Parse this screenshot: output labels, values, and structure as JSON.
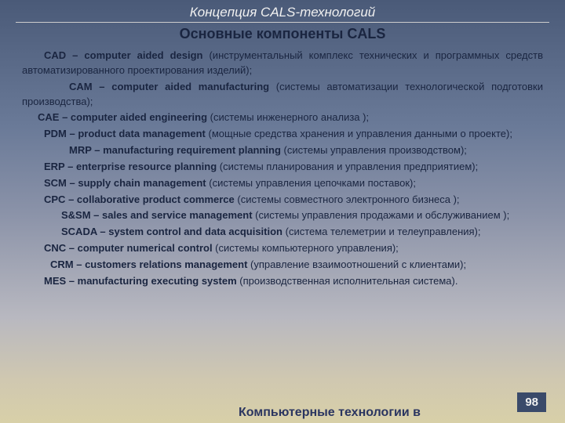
{
  "header": "Концепция CALS-технологий",
  "title": "Основные компоненты CALS",
  "entries": [
    {
      "indent": 28,
      "abbr": "СAD",
      "sep": " – ",
      "full": "computer aided design",
      "desc": " (инструментальный комплекс технических и программных средств автоматизированного проектирования изделий);"
    },
    {
      "indent": 60,
      "abbr": "CAM",
      "sep": "  –  ",
      "full": "computer aided manufacturing",
      "desc": " (системы автоматизации технологической подготовки производства);"
    },
    {
      "indent": 20,
      "abbr": "CAE",
      "sep": "  – ",
      "full": "computer aided engineering",
      "desc": " (системы инженерного анализа );"
    },
    {
      "indent": 28,
      "abbr": "PDM",
      "sep": " – ",
      "full": "product data management",
      "desc": " (мощные средства хранения и управления данными о проекте);"
    },
    {
      "indent": 60,
      "abbr": "MRP",
      "sep": " – ",
      "full": "manufacturing requirement planning",
      "desc": " (системы управления производством);"
    },
    {
      "indent": 28,
      "abbr": "ERP",
      "sep": " – ",
      "full": "enterprise resource planning",
      "desc": " (системы планирования и управления предприятием);"
    },
    {
      "indent": 28,
      "abbr": "SCM",
      "sep": " – ",
      "full": "supply chain management",
      "desc": " (системы управления цепочками поставок);"
    },
    {
      "indent": 28,
      "abbr": "CPC",
      "sep": " – ",
      "full": "collaborative product commerce",
      "desc": " (системы совместного электронного бизнеса );"
    },
    {
      "indent": 50,
      "abbr": "S&SM",
      "sep": " – ",
      "full": "sales and service management",
      "desc": " (системы управления продажами и обслуживанием );"
    },
    {
      "indent": 50,
      "abbr": "SCADA",
      "sep": " – ",
      "full": "system control and data acquisition",
      "desc": " (система телеметрии и телеуправления);"
    },
    {
      "indent": 28,
      "abbr": "CNC",
      "sep": "  – ",
      "full": "computer numerical control",
      "desc": " (системы компьютерного управления);"
    },
    {
      "indent": 36,
      "abbr": "CRM",
      "sep": " – ",
      "full": "customers relations management",
      "desc": " (управление взаимоотношений с клиентами);"
    },
    {
      "indent": 28,
      "abbr": "MES",
      "sep": " – ",
      "full": "manufacturing executing system",
      "desc": " (производственная исполнительная система)."
    }
  ],
  "footer_text": "Компьютерные технологии в",
  "page_number": "98",
  "colors": {
    "text_dark": "#1a2540",
    "header_light": "#f0f0f0",
    "badge_bg": "#3a4a6a"
  }
}
